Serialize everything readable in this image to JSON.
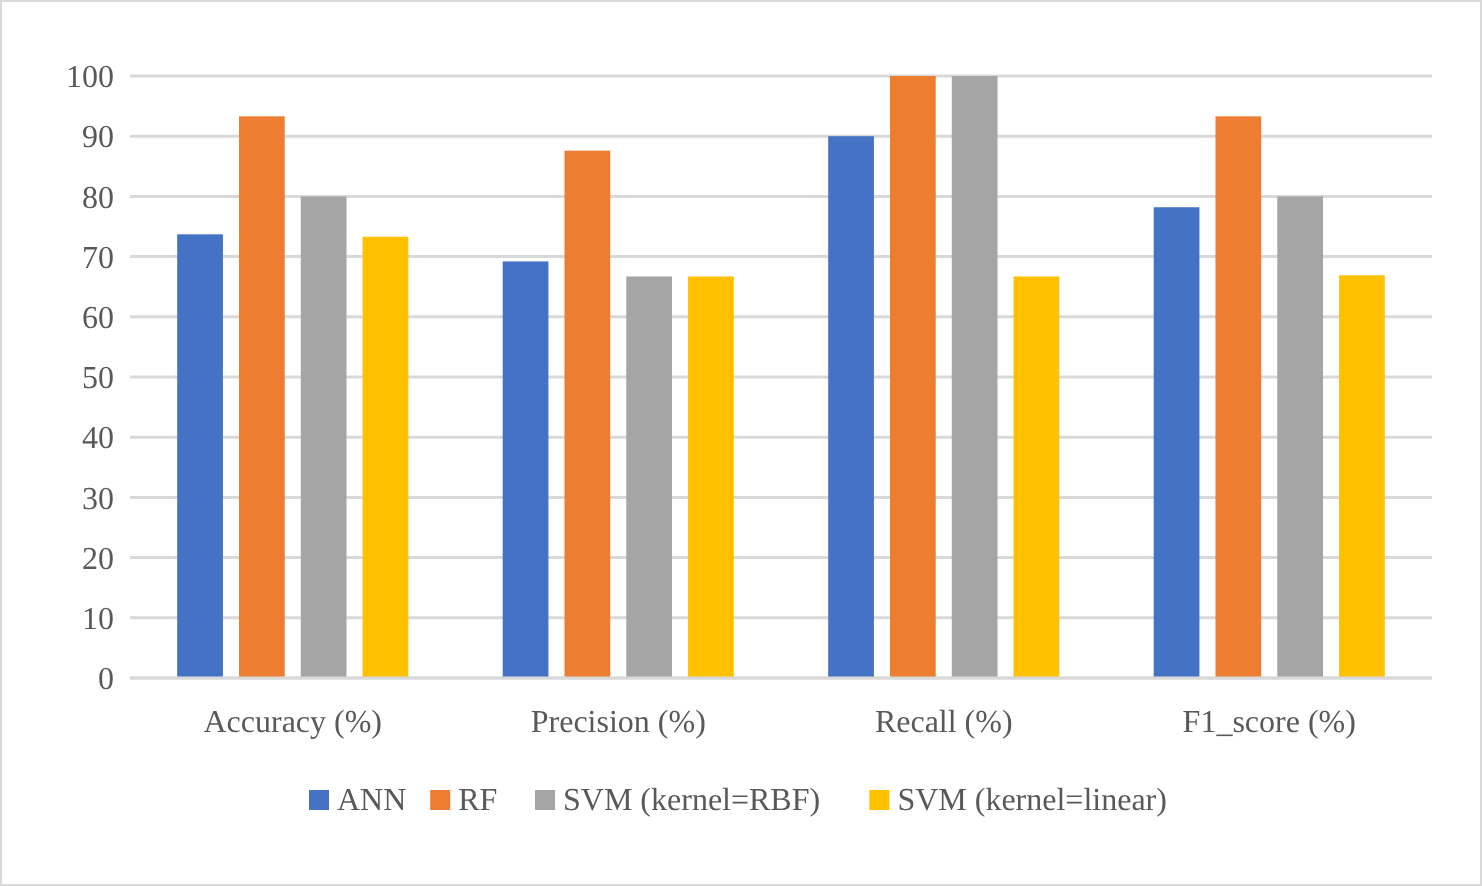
{
  "chart_data": {
    "type": "bar",
    "categories": [
      "Accuracy (%)",
      "Precision (%)",
      "Recall (%)",
      "F1_score (%)"
    ],
    "series": [
      {
        "name": "ANN",
        "color": "#4472c4",
        "values": [
          73.7,
          69.2,
          90,
          78.2
        ]
      },
      {
        "name": "RF",
        "color": "#ed7d31",
        "values": [
          93.3,
          87.6,
          100,
          93.3
        ]
      },
      {
        "name": "SVM (kernel=RBF)",
        "color": "#a5a5a5",
        "values": [
          80,
          66.7,
          100,
          80
        ]
      },
      {
        "name": "SVM (kernel=linear)",
        "color": "#ffc000",
        "values": [
          73.3,
          66.7,
          66.7,
          66.9
        ]
      }
    ],
    "ylim": [
      0,
      100
    ],
    "yticks": [
      0,
      10,
      20,
      30,
      40,
      50,
      60,
      70,
      80,
      90,
      100
    ],
    "grid": "y",
    "legend": "bottom"
  }
}
